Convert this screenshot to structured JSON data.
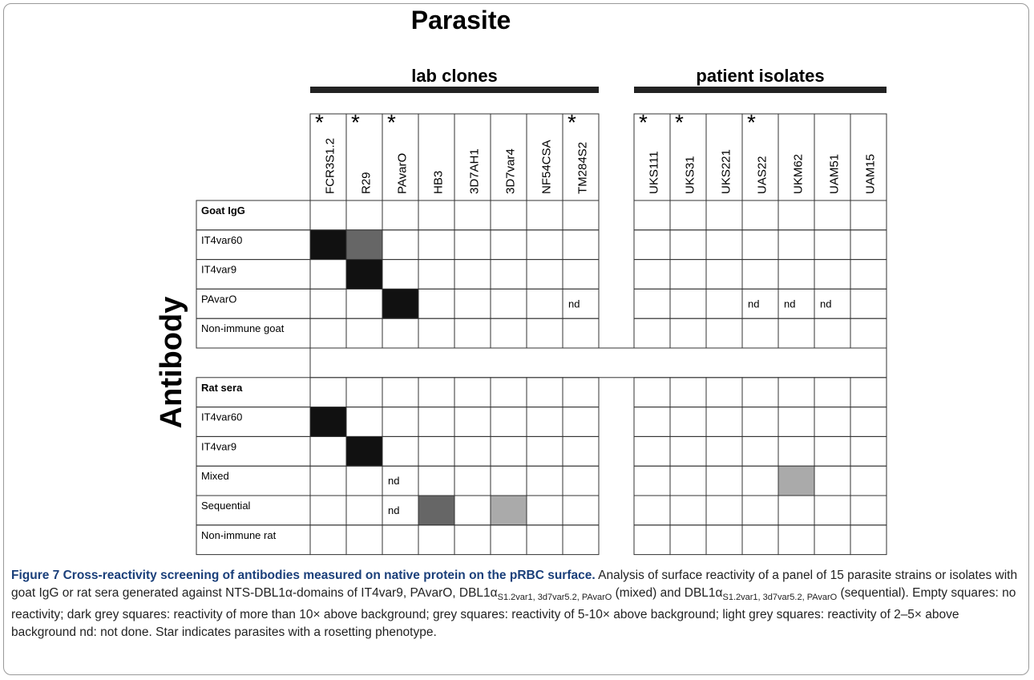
{
  "figure": {
    "title": "Parasite",
    "row_axis_label": "Antibody",
    "groups": [
      {
        "name": "lab clones",
        "columns": [
          {
            "name": "FCR3S1.2",
            "star": "*"
          },
          {
            "name": "R29",
            "star": "*"
          },
          {
            "name": "PAvarO",
            "star": "*"
          },
          {
            "name": "HB3"
          },
          {
            "name": "3D7AH1"
          },
          {
            "name": "3D7var4"
          },
          {
            "name": "NF54CSA"
          },
          {
            "name": "TM284S2",
            "star": "*"
          }
        ]
      },
      {
        "name": "patient isolates",
        "columns": [
          {
            "name": "UKS111",
            "star": "*"
          },
          {
            "name": "UKS31",
            "star": "*"
          },
          {
            "name": "UKS221"
          },
          {
            "name": "UAS22",
            "star": "*"
          },
          {
            "name": "UKM62"
          },
          {
            "name": "UAM51"
          },
          {
            "name": "UAM15"
          }
        ]
      }
    ],
    "rows": [
      {
        "label": "Goat IgG",
        "bold": true,
        "cells": [
          null,
          null,
          null,
          null,
          null,
          null,
          null,
          null,
          null,
          null,
          null,
          null,
          null,
          null,
          null
        ]
      },
      {
        "label": "IT4var60",
        "cells": [
          "#111111",
          "#666666",
          null,
          null,
          null,
          null,
          null,
          null,
          null,
          null,
          null,
          null,
          null,
          null,
          null
        ]
      },
      {
        "label": "IT4var9",
        "cells": [
          null,
          "#111111",
          null,
          null,
          null,
          null,
          null,
          null,
          null,
          null,
          null,
          null,
          null,
          null,
          null
        ]
      },
      {
        "label": "PAvarO",
        "cells": [
          null,
          null,
          "#111111",
          null,
          null,
          null,
          null,
          "nd",
          null,
          null,
          null,
          "nd",
          "nd",
          "nd",
          null
        ]
      },
      {
        "label": "Non-immune goat",
        "cells": [
          null,
          null,
          null,
          null,
          null,
          null,
          null,
          null,
          null,
          null,
          null,
          null,
          null,
          null,
          null
        ]
      },
      {
        "blank": true
      },
      {
        "label": "Rat sera",
        "bold": true,
        "cells": [
          null,
          null,
          null,
          null,
          null,
          null,
          null,
          null,
          null,
          null,
          null,
          null,
          null,
          null,
          null
        ]
      },
      {
        "label": "IT4var60",
        "cells": [
          "#111111",
          null,
          null,
          null,
          null,
          null,
          null,
          null,
          null,
          null,
          null,
          null,
          null,
          null,
          null
        ]
      },
      {
        "label": "IT4var9",
        "cells": [
          null,
          "#111111",
          null,
          null,
          null,
          null,
          null,
          null,
          null,
          null,
          null,
          null,
          null,
          null,
          null
        ]
      },
      {
        "label": "Mixed",
        "cells": [
          null,
          null,
          "nd",
          null,
          null,
          null,
          null,
          null,
          null,
          null,
          null,
          null,
          "#aaaaaa",
          null,
          null
        ]
      },
      {
        "label": "Sequential",
        "cells": [
          null,
          null,
          "nd",
          "#666666",
          null,
          "#aaaaaa",
          null,
          null,
          null,
          null,
          null,
          null,
          null,
          null,
          null
        ]
      },
      {
        "label": "Non-immune rat",
        "cells": [
          null,
          null,
          null,
          null,
          null,
          null,
          null,
          null,
          null,
          null,
          null,
          null,
          null,
          null,
          null
        ]
      }
    ]
  },
  "caption": {
    "label": "Figure 7 Cross-reactivity screening of antibodies measured on native protein on the pRBC surface.",
    "parts": [
      {
        "text": " Analysis of surface reactivity of a panel of 15 parasite strains or isolates with goat IgG or rat sera generated against NTS-DBL1α-domains of IT4var9, PAvarO, DBL1α"
      },
      {
        "text": "S1.2var1, 3d7var5.2, PAvarO",
        "sub": true
      },
      {
        "text": " (mixed) and DBL1α"
      },
      {
        "text": "S1.2var1, 3d7var5.2, PAvarO",
        "sub": true
      },
      {
        "text": " (sequential). Empty squares: no reactivity; dark grey squares: reactivity of more than 10× above background; grey squares: reactivity of 5-10× above background; light grey squares: reactivity of 2–5× above background nd: not done. Star indicates parasites with a rosetting phenotype."
      }
    ]
  }
}
